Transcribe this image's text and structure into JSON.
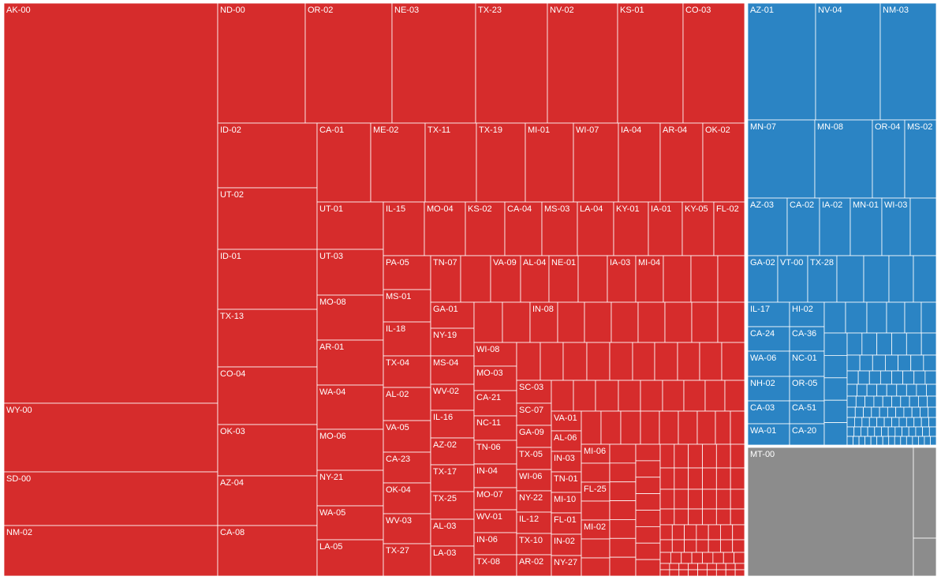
{
  "chart_data": {
    "type": "treemap",
    "groups": [
      {
        "name": "",
        "color": "#d62c2c",
        "cells": [
          {
            "label": "AK-00"
          },
          {
            "label": "WY-00"
          },
          {
            "label": "SD-00"
          },
          {
            "label": "NM-02"
          },
          {
            "label": "ND-00"
          },
          {
            "label": "OR-02"
          },
          {
            "label": "NE-03"
          },
          {
            "label": "TX-23"
          },
          {
            "label": "NV-02"
          },
          {
            "label": "KS-01"
          },
          {
            "label": "CO-03"
          },
          {
            "label": "ID-02"
          },
          {
            "label": "UT-02"
          },
          {
            "label": "ID-01"
          },
          {
            "label": "TX-13"
          },
          {
            "label": "CO-04"
          },
          {
            "label": "OK-03"
          },
          {
            "label": "AZ-04"
          },
          {
            "label": "CA-08"
          },
          {
            "label": "CA-01"
          },
          {
            "label": "ME-02"
          },
          {
            "label": "TX-11"
          },
          {
            "label": "TX-19"
          },
          {
            "label": "MI-01"
          },
          {
            "label": "WI-07"
          },
          {
            "label": "IA-04"
          },
          {
            "label": "AR-04"
          },
          {
            "label": "OK-02"
          },
          {
            "label": "UT-01"
          },
          {
            "label": "UT-03"
          },
          {
            "label": "MO-08"
          },
          {
            "label": "AR-01"
          },
          {
            "label": "WA-04"
          },
          {
            "label": "MO-06"
          },
          {
            "label": "NY-21"
          },
          {
            "label": "WA-05"
          },
          {
            "label": "LA-05"
          },
          {
            "label": "IL-15"
          },
          {
            "label": "MO-04"
          },
          {
            "label": "KS-02"
          },
          {
            "label": "CA-04"
          },
          {
            "label": "MS-03"
          },
          {
            "label": "LA-04"
          },
          {
            "label": "KY-01"
          },
          {
            "label": "IA-01"
          },
          {
            "label": "KY-05"
          },
          {
            "label": "FL-02"
          },
          {
            "label": "PA-05"
          },
          {
            "label": "MS-01"
          },
          {
            "label": "IL-18"
          },
          {
            "label": "TX-04"
          },
          {
            "label": "AL-02"
          },
          {
            "label": "VA-05"
          },
          {
            "label": "CA-23"
          },
          {
            "label": "OK-04"
          },
          {
            "label": "WV-03"
          },
          {
            "label": "TX-27"
          },
          {
            "label": "TN-07"
          },
          {
            "label": "VA-09"
          },
          {
            "label": "AL-04"
          },
          {
            "label": "NE-01"
          },
          {
            "label": "IA-03"
          },
          {
            "label": "MI-04"
          },
          {
            "label": "GA-01"
          },
          {
            "label": "NY-19"
          },
          {
            "label": "MS-04"
          },
          {
            "label": "WV-02"
          },
          {
            "label": "IL-16"
          },
          {
            "label": "AZ-02"
          },
          {
            "label": "TX-17"
          },
          {
            "label": "TX-25"
          },
          {
            "label": "AL-03"
          },
          {
            "label": "LA-03"
          },
          {
            "label": "IN-08"
          },
          {
            "label": "WI-08"
          },
          {
            "label": "MO-03"
          },
          {
            "label": "CA-21"
          },
          {
            "label": "NC-11"
          },
          {
            "label": "TN-06"
          },
          {
            "label": "IN-04"
          },
          {
            "label": "MO-07"
          },
          {
            "label": "WV-01"
          },
          {
            "label": "IN-06"
          },
          {
            "label": "TX-08"
          },
          {
            "label": "SC-03"
          },
          {
            "label": "SC-07"
          },
          {
            "label": "GA-09"
          },
          {
            "label": "TX-05"
          },
          {
            "label": "WI-06"
          },
          {
            "label": "NY-22"
          },
          {
            "label": "IL-12"
          },
          {
            "label": "TX-10"
          },
          {
            "label": "AR-02"
          },
          {
            "label": "VA-01"
          },
          {
            "label": "AL-06"
          },
          {
            "label": "IN-03"
          },
          {
            "label": "TN-01"
          },
          {
            "label": "MI-10"
          },
          {
            "label": "FL-01"
          },
          {
            "label": "IN-02"
          },
          {
            "label": "NY-27"
          },
          {
            "label": "MI-06"
          },
          {
            "label": "FL-25"
          },
          {
            "label": "MI-02"
          }
        ]
      },
      {
        "name": "",
        "color": "#2b84c4",
        "cells": [
          {
            "label": "AZ-01"
          },
          {
            "label": "NV-04"
          },
          {
            "label": "NM-03"
          },
          {
            "label": "MN-07"
          },
          {
            "label": "MN-08"
          },
          {
            "label": "OR-04"
          },
          {
            "label": "MS-02"
          },
          {
            "label": "AZ-03"
          },
          {
            "label": "CA-02"
          },
          {
            "label": "IA-02"
          },
          {
            "label": "MN-01"
          },
          {
            "label": "WI-03"
          },
          {
            "label": "GA-02"
          },
          {
            "label": "VT-00"
          },
          {
            "label": "TX-28"
          },
          {
            "label": "IL-17"
          },
          {
            "label": "CA-24"
          },
          {
            "label": "WA-06"
          },
          {
            "label": "NH-02"
          },
          {
            "label": "CA-03"
          },
          {
            "label": "WA-01"
          },
          {
            "label": "HI-02"
          },
          {
            "label": "CA-36"
          },
          {
            "label": "NC-01"
          },
          {
            "label": "OR-05"
          },
          {
            "label": "CA-51"
          },
          {
            "label": "CA-20"
          }
        ]
      },
      {
        "name": "",
        "color": "#8c8c8c",
        "cells": [
          {
            "label": "MT-00"
          }
        ]
      }
    ]
  }
}
